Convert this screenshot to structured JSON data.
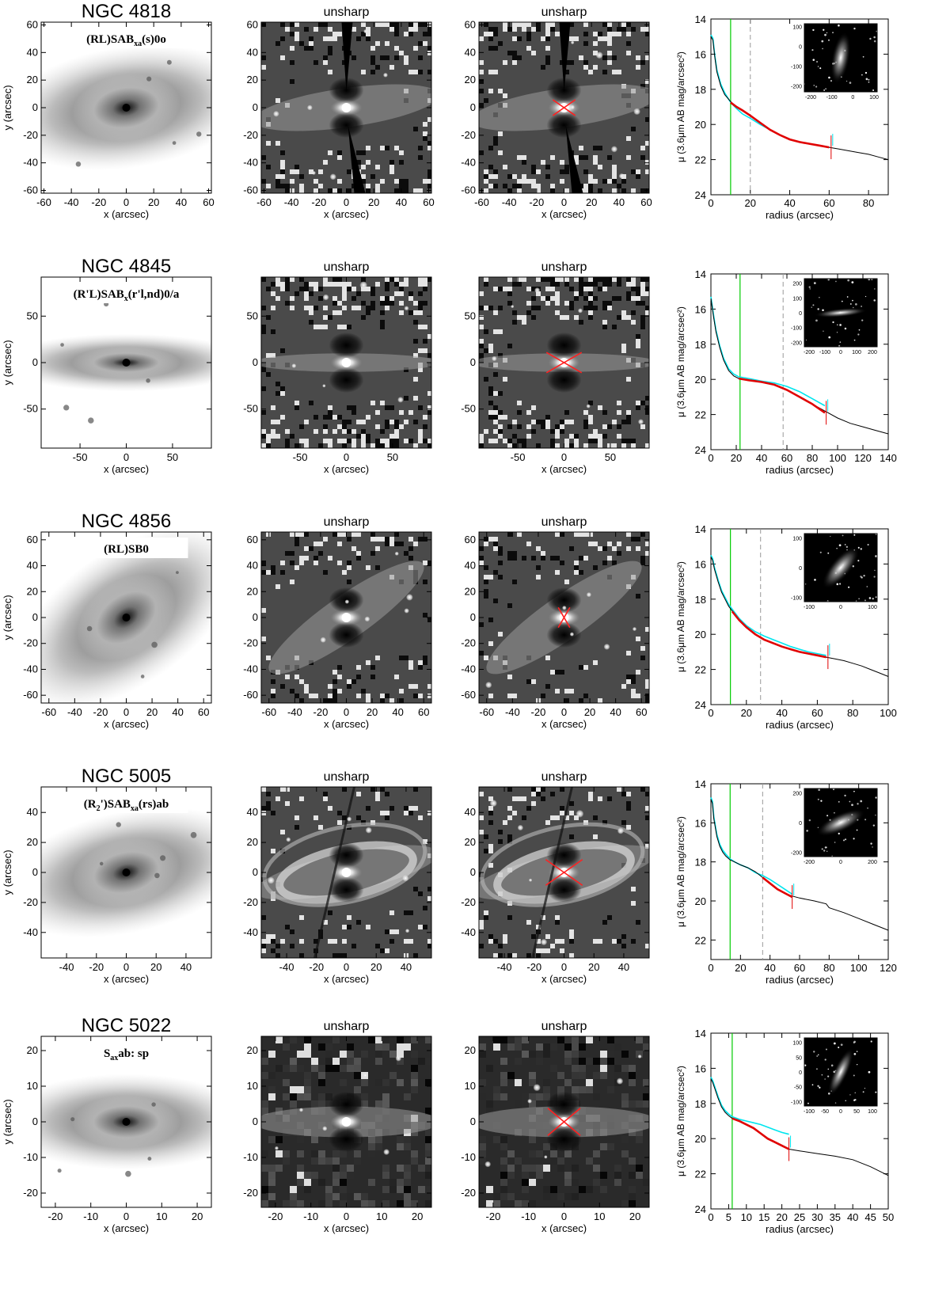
{
  "figure": {
    "panel_title_unsharp": "unsharp",
    "x_label": "x (arcsec)",
    "y_label": "y (arcsec)",
    "profile_x_label": "radius (arcsec)",
    "profile_y_label": "μ (3.6μm AB mag/arcsec²)"
  },
  "colors": {
    "profile": "#000000",
    "model": "#00e5ee",
    "fit": "#e00000",
    "vline_solid": "#00cc00",
    "vline_dashed": "#999999",
    "cross": "#ff2020"
  },
  "chart_data": [
    {
      "type": "line",
      "galaxy": "NGC 4818",
      "classification": "(RL)SAB",
      "class_sub": "xa",
      "class_tail": "(s)0o",
      "image_xlim": [
        -62,
        62
      ],
      "image_ylim": [
        -62,
        62
      ],
      "image_ticks": [
        -60,
        -40,
        -20,
        0,
        20,
        40,
        60
      ],
      "profile_xlim": [
        0,
        90
      ],
      "profile_ylim": [
        24,
        14
      ],
      "profile_xticks": [
        0,
        20,
        40,
        60,
        80
      ],
      "profile_yticks": [
        14,
        16,
        18,
        20,
        22,
        24
      ],
      "profile": {
        "x": [
          0,
          1,
          2,
          3,
          5,
          7,
          10,
          13,
          16,
          20,
          25,
          30,
          35,
          40,
          45,
          50,
          55,
          60,
          65,
          70,
          75,
          80,
          85,
          90
        ],
        "y": [
          15.0,
          15.2,
          16.2,
          17.0,
          17.8,
          18.3,
          18.7,
          19.0,
          19.2,
          19.5,
          19.9,
          20.3,
          20.6,
          20.85,
          21.0,
          21.1,
          21.2,
          21.3,
          21.4,
          21.5,
          21.6,
          21.7,
          21.85,
          22.0
        ]
      },
      "model": {
        "x": [
          0,
          1,
          2,
          3,
          5,
          7,
          10,
          13,
          16,
          20,
          25,
          30,
          35,
          40,
          45,
          50,
          55,
          60
        ],
        "y": [
          14.9,
          15.1,
          16.1,
          16.9,
          17.7,
          18.2,
          18.75,
          19.1,
          19.4,
          19.65,
          20.0,
          20.3,
          20.6,
          20.85,
          21.0,
          21.1,
          21.2,
          21.3
        ]
      },
      "fit": {
        "x": [
          10,
          13,
          16,
          20,
          25,
          30,
          35,
          40,
          45,
          50,
          55,
          60
        ],
        "y": [
          18.75,
          19.0,
          19.2,
          19.5,
          19.9,
          20.3,
          20.6,
          20.85,
          21.0,
          21.1,
          21.2,
          21.3
        ]
      },
      "vline_solid": 10,
      "vline_dashed": 20,
      "end_marker": 61,
      "inset_xticks": [
        -200,
        -100,
        0,
        100
      ],
      "inset_yticks": [
        -200,
        -100,
        0,
        100
      ],
      "cross_size": 10,
      "cross_angle": 35
    },
    {
      "type": "line",
      "galaxy": "NGC 4845",
      "classification": "(R'L)SAB",
      "class_sub": "x",
      "class_tail": "(r'l,nd)0/a",
      "image_xlim": [
        -92,
        92
      ],
      "image_ylim": [
        -92,
        92
      ],
      "image_ticks": [
        -50,
        0,
        50
      ],
      "profile_xlim": [
        0,
        140
      ],
      "profile_ylim": [
        24,
        14
      ],
      "profile_xticks": [
        0,
        20,
        40,
        60,
        80,
        100,
        120,
        140
      ],
      "profile_yticks": [
        14,
        16,
        18,
        20,
        22,
        24
      ],
      "profile": {
        "x": [
          0,
          2,
          4,
          7,
          10,
          14,
          18,
          22,
          30,
          40,
          50,
          60,
          70,
          80,
          90,
          100,
          110,
          120,
          130,
          140
        ],
        "y": [
          15.4,
          16.4,
          17.3,
          18.2,
          18.9,
          19.5,
          19.8,
          19.95,
          20.05,
          20.15,
          20.3,
          20.6,
          21.0,
          21.4,
          21.8,
          22.2,
          22.5,
          22.7,
          22.9,
          23.1
        ]
      },
      "model": {
        "x": [
          0,
          2,
          4,
          7,
          10,
          14,
          18,
          22,
          30,
          40,
          50,
          60,
          70,
          80,
          90
        ],
        "y": [
          15.3,
          16.3,
          17.2,
          18.1,
          18.8,
          19.4,
          19.7,
          19.85,
          19.95,
          20.1,
          20.2,
          20.4,
          20.7,
          21.1,
          21.5
        ]
      },
      "fit": {
        "x": [
          22,
          30,
          40,
          50,
          60,
          70,
          80,
          90
        ],
        "y": [
          19.95,
          20.05,
          20.15,
          20.3,
          20.6,
          21.0,
          21.4,
          21.9
        ]
      },
      "vline_solid": 23,
      "vline_dashed": 57,
      "end_marker": 91,
      "inset_xticks": [
        -200,
        -100,
        0,
        100,
        200
      ],
      "inset_yticks": [
        -200,
        -100,
        0,
        100,
        200
      ],
      "cross_size": 22,
      "cross_angle": 30
    },
    {
      "type": "line",
      "galaxy": "NGC 4856",
      "classification": "(RL)SB0",
      "class_sub": "",
      "class_tail": "",
      "image_xlim": [
        -66,
        66
      ],
      "image_ylim": [
        -66,
        66
      ],
      "image_ticks": [
        -60,
        -40,
        -20,
        0,
        20,
        40,
        60
      ],
      "profile_xlim": [
        0,
        100
      ],
      "profile_ylim": [
        24,
        14
      ],
      "profile_xticks": [
        0,
        20,
        40,
        60,
        80,
        100
      ],
      "profile_yticks": [
        14,
        16,
        18,
        20,
        22,
        24
      ],
      "profile": {
        "x": [
          0,
          1,
          2,
          4,
          6,
          8,
          10,
          13,
          16,
          20,
          25,
          30,
          35,
          40,
          45,
          50,
          55,
          60,
          65,
          70,
          75,
          80,
          85,
          90,
          95,
          100
        ],
        "y": [
          15.6,
          15.8,
          16.3,
          17.0,
          17.6,
          18.0,
          18.4,
          18.8,
          19.2,
          19.6,
          20.0,
          20.3,
          20.5,
          20.7,
          20.85,
          21.0,
          21.1,
          21.2,
          21.3,
          21.4,
          21.5,
          21.65,
          21.8,
          22.0,
          22.2,
          22.4
        ]
      },
      "model": {
        "x": [
          0,
          1,
          2,
          4,
          6,
          8,
          10,
          13,
          16,
          20,
          25,
          30,
          35,
          40,
          45,
          50,
          55,
          60,
          65
        ],
        "y": [
          15.5,
          15.7,
          16.2,
          16.9,
          17.5,
          17.9,
          18.3,
          18.7,
          19.1,
          19.5,
          19.85,
          20.1,
          20.3,
          20.5,
          20.7,
          20.85,
          21.0,
          21.1,
          21.2
        ]
      },
      "fit": {
        "x": [
          12,
          16,
          20,
          25,
          30,
          35,
          40,
          45,
          50,
          55,
          60,
          65
        ],
        "y": [
          18.7,
          19.2,
          19.6,
          20.0,
          20.3,
          20.5,
          20.7,
          20.85,
          21.0,
          21.1,
          21.2,
          21.3
        ]
      },
      "vline_solid": 11,
      "vline_dashed": 28,
      "end_marker": 66,
      "inset_xticks": [
        -100,
        0,
        100
      ],
      "inset_yticks": [
        -100,
        0,
        100
      ],
      "cross_size": 9,
      "cross_angle": 60
    },
    {
      "type": "line",
      "galaxy": "NGC 5005",
      "classification": "(R",
      "class_sub": "2",
      "class_tail": "')SAB",
      "class_sub2": "xa",
      "class_tail2": "(rs)ab",
      "image_xlim": [
        -57,
        57
      ],
      "image_ylim": [
        -57,
        57
      ],
      "image_ticks": [
        -40,
        -20,
        0,
        20,
        40
      ],
      "profile_xlim": [
        0,
        120
      ],
      "profile_ylim": [
        23,
        14
      ],
      "profile_xticks": [
        0,
        20,
        40,
        60,
        80,
        100,
        120
      ],
      "profile_yticks": [
        14,
        16,
        18,
        20,
        22
      ],
      "profile": {
        "x": [
          0,
          1,
          2,
          4,
          6,
          8,
          10,
          13,
          16,
          20,
          25,
          30,
          35,
          40,
          45,
          50,
          55,
          60,
          70,
          78,
          80,
          90,
          100,
          110,
          120
        ],
        "y": [
          14.8,
          15.0,
          15.8,
          16.7,
          17.2,
          17.5,
          17.7,
          17.9,
          18.0,
          18.15,
          18.3,
          18.5,
          18.8,
          19.1,
          19.4,
          19.6,
          19.75,
          19.85,
          20.0,
          20.15,
          20.35,
          20.6,
          20.9,
          21.2,
          21.5
        ]
      },
      "model": {
        "x": [
          0,
          1,
          2,
          4,
          6,
          8,
          10,
          13,
          16,
          20,
          25,
          30,
          35,
          40,
          45,
          50,
          55
        ],
        "y": [
          14.7,
          14.9,
          15.7,
          16.6,
          17.1,
          17.4,
          17.6,
          17.85,
          18.0,
          18.15,
          18.3,
          18.55,
          18.7,
          18.9,
          19.15,
          19.4,
          19.65
        ]
      },
      "fit": {
        "x": [
          35,
          40,
          45,
          50,
          55
        ],
        "y": [
          18.8,
          19.1,
          19.4,
          19.6,
          19.8
        ]
      },
      "vline_solid": 13,
      "vline_dashed": 35,
      "end_marker": 55,
      "inset_xticks": [
        -200,
        0,
        200
      ],
      "inset_yticks": [
        -200,
        0,
        200
      ],
      "cross_size": 15,
      "cross_angle": 35
    },
    {
      "type": "line",
      "galaxy": "NGC 5022",
      "classification": "S",
      "class_sub": "ax",
      "class_tail": "ab: sp",
      "image_xlim": [
        -24,
        24
      ],
      "image_ylim": [
        -24,
        24
      ],
      "image_ticks": [
        -20,
        -10,
        0,
        10,
        20
      ],
      "profile_xlim": [
        0,
        50
      ],
      "profile_ylim": [
        24,
        14
      ],
      "profile_xticks": [
        0,
        5,
        10,
        15,
        20,
        25,
        30,
        35,
        40,
        45,
        50
      ],
      "profile_yticks": [
        14,
        16,
        18,
        20,
        22,
        24
      ],
      "profile": {
        "x": [
          0,
          0.5,
          1,
          2,
          3,
          4,
          5,
          6,
          8,
          10,
          12,
          14,
          16,
          18,
          20,
          22,
          25,
          30,
          35,
          40,
          45,
          50
        ],
        "y": [
          16.6,
          16.8,
          17.1,
          17.7,
          18.2,
          18.5,
          18.7,
          18.85,
          19.0,
          19.2,
          19.4,
          19.7,
          20.0,
          20.2,
          20.4,
          20.6,
          20.7,
          20.85,
          21.0,
          21.2,
          21.6,
          22.1
        ]
      },
      "model": {
        "x": [
          0,
          0.5,
          1,
          2,
          3,
          4,
          5,
          6,
          8,
          10,
          12,
          14,
          16,
          18,
          20,
          22
        ],
        "y": [
          16.5,
          16.7,
          17.0,
          17.6,
          18.1,
          18.4,
          18.6,
          18.75,
          18.9,
          19.0,
          19.1,
          19.2,
          19.35,
          19.5,
          19.65,
          19.75
        ]
      },
      "fit": {
        "x": [
          6,
          8,
          10,
          12,
          14,
          16,
          18,
          20,
          22
        ],
        "y": [
          18.85,
          19.0,
          19.2,
          19.4,
          19.7,
          20.0,
          20.2,
          20.4,
          20.6
        ]
      },
      "vline_solid": 6,
      "vline_dashed": null,
      "end_marker": 22,
      "inset_xticks": [
        -100,
        -50,
        0,
        50,
        100
      ],
      "inset_yticks": [
        -100,
        -50,
        0,
        50,
        100
      ],
      "cross_size": 6,
      "cross_angle": 40
    }
  ]
}
